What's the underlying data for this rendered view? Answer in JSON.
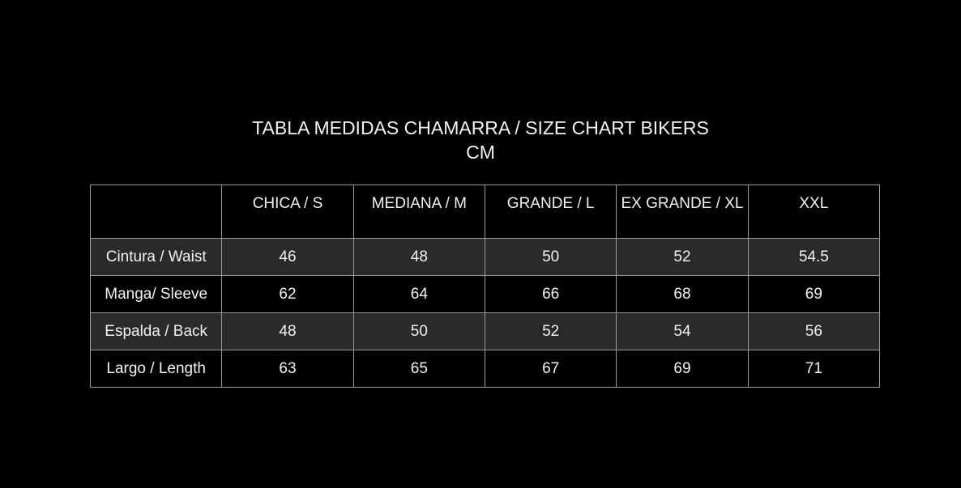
{
  "title": {
    "line1": "TABLA MEDIDAS CHAMARRA / SIZE CHART BIKERS",
    "line2": "CM"
  },
  "table": {
    "headers": [
      "",
      "CHICA / S",
      "MEDIANA / M",
      "GRANDE / L",
      "EX GRANDE / XL",
      "XXL"
    ],
    "rows": [
      {
        "label": "Cintura / Waist",
        "values": [
          "46",
          "48",
          "50",
          "52",
          "54.5"
        ]
      },
      {
        "label": "Manga/ Sleeve",
        "values": [
          "62",
          "64",
          "66",
          "68",
          "69"
        ]
      },
      {
        "label": "Espalda / Back",
        "values": [
          "48",
          "50",
          "52",
          "54",
          "56"
        ]
      },
      {
        "label": "Largo / Length",
        "values": [
          "63",
          "65",
          "67",
          "69",
          "71"
        ]
      }
    ]
  },
  "colors": {
    "background": "#000000",
    "shaded_row": "#2a2a2a",
    "border": "#9a9a9a",
    "text": "#f2f2f2"
  }
}
